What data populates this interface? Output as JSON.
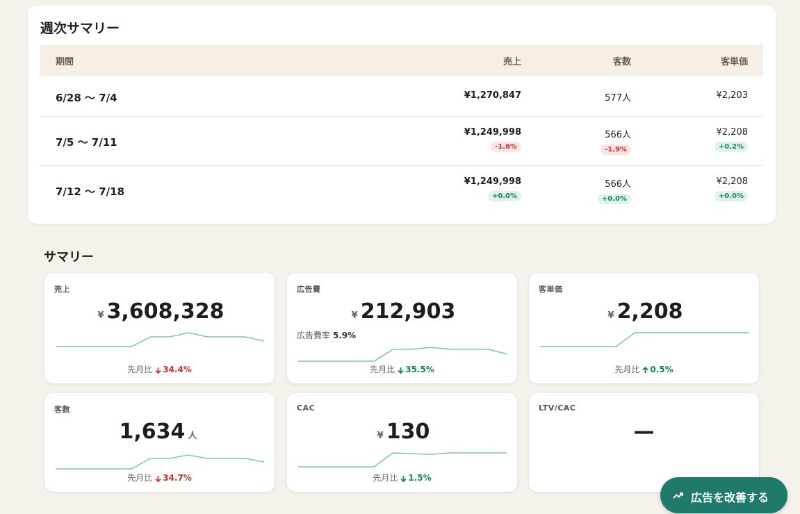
{
  "weekly_summary": {
    "title": "週次サマリー",
    "columns": [
      "期間",
      "売上",
      "客数",
      "客単価"
    ],
    "rows": [
      {
        "period": "6/28 〜 7/4",
        "sales": "¥1,270,847",
        "customers": "577人",
        "unit_price": "¥2,203"
      },
      {
        "period": "7/5 〜 7/11",
        "sales": "¥1,249,998",
        "customers": "566人",
        "unit_price": "¥2,208",
        "sales_change": "-1.6%",
        "customers_change": "-1.9%",
        "unit_price_change": "+0.2%"
      },
      {
        "period": "7/12 〜 7/18",
        "sales": "¥1,249,998",
        "customers": "566人",
        "unit_price": "¥2,208",
        "sales_change": "+0.0%",
        "customers_change": "+0.0%",
        "unit_price_change": "+0.0%"
      }
    ]
  },
  "summary": {
    "title": "サマリー",
    "cards": [
      {
        "label": "売上",
        "currency": "¥",
        "value": "3,608,328",
        "comparison_label": "先月比",
        "comparison": "34.4%",
        "trend": [
          0,
          0,
          0,
          0,
          0,
          14,
          14,
          20,
          14,
          14,
          14,
          8
        ]
      },
      {
        "label": "広告費",
        "currency": "¥",
        "value": "212,903",
        "sub_label": "広告費率",
        "sub_value": "5.9%",
        "comparison_label": "先月比",
        "comparison": "35.5%",
        "trend": [
          0,
          0,
          0,
          0,
          0,
          18,
          18,
          21,
          18,
          18,
          18,
          11
        ]
      },
      {
        "label": "客単価",
        "currency": "¥",
        "value": "2,208",
        "comparison_label": "先月比",
        "comparison": "0.5%",
        "trend": [
          0,
          0,
          0,
          0,
          0,
          20,
          20,
          20,
          20,
          20,
          20,
          20
        ]
      },
      {
        "label": "客数",
        "value": "1,634",
        "unit": "人",
        "comparison_label": "先月比",
        "comparison": "34.7%",
        "trend": [
          0,
          0,
          0,
          0,
          0,
          15,
          15,
          20,
          15,
          15,
          15,
          10
        ]
      },
      {
        "label": "CAC",
        "currency": "¥",
        "value": "130",
        "comparison_label": "先月比",
        "comparison": "1.5%",
        "trend": [
          0,
          0,
          0,
          0,
          0,
          19,
          18,
          17,
          19,
          19,
          19,
          19
        ]
      },
      {
        "label": "LTV/CAC",
        "value": "—"
      }
    ]
  },
  "action_button": {
    "label": "広告を改善する"
  }
}
